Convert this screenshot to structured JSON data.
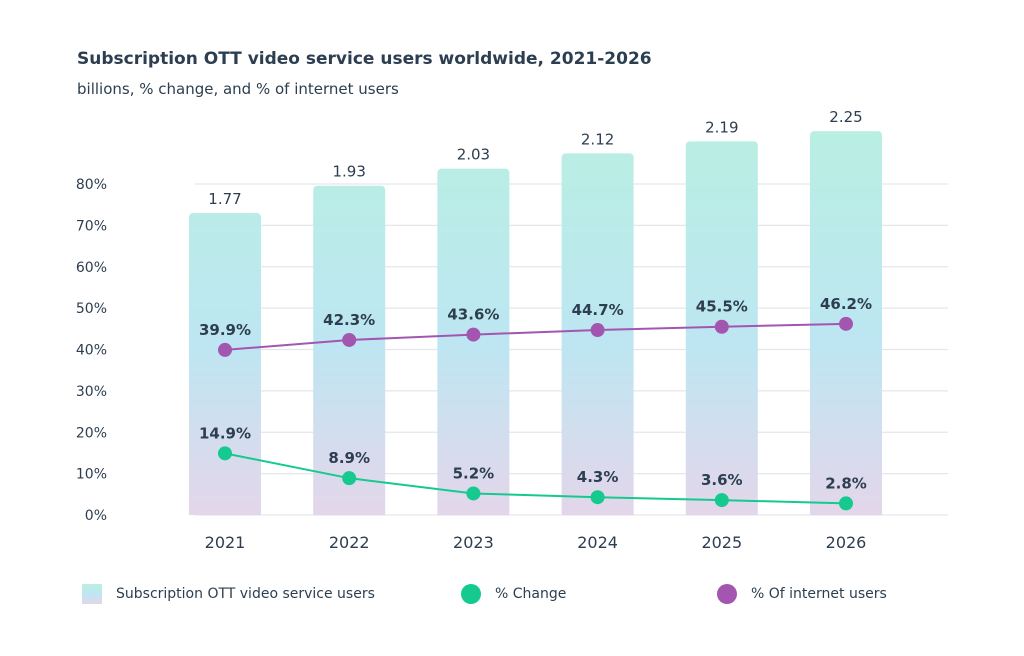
{
  "chart_data": {
    "type": "bar+line",
    "title": "Subscription OTT video service users worldwide, 2021-2026",
    "subtitle": "billions, % change, and % of internet users",
    "categories": [
      "2021",
      "2022",
      "2023",
      "2024",
      "2025",
      "2026"
    ],
    "y_axis": {
      "ticks": [
        "0%",
        "10%",
        "20%",
        "30%",
        "40%",
        "50%",
        "60%",
        "70%",
        "80%"
      ],
      "ylim": [
        0,
        80
      ],
      "grid": true
    },
    "series": [
      {
        "name": "Subscription OTT video service users",
        "type": "bar",
        "unit": "billions",
        "values": [
          1.77,
          1.93,
          2.03,
          2.12,
          2.19,
          2.25
        ],
        "labels": [
          "1.77",
          "1.93",
          "2.03",
          "2.12",
          "2.19",
          "2.25"
        ],
        "colors": [
          "#b9efe2",
          "#bde6f2",
          "#e4d6ea"
        ]
      },
      {
        "name": "% Change",
        "type": "line",
        "values": [
          14.9,
          8.9,
          5.2,
          4.3,
          3.6,
          2.8
        ],
        "labels": [
          "14.9%",
          "8.9%",
          "5.2%",
          "4.3%",
          "3.6%",
          "2.8%"
        ],
        "color": "#15c98f"
      },
      {
        "name": "% Of internet users",
        "type": "line",
        "values": [
          39.9,
          42.3,
          43.6,
          44.7,
          45.5,
          46.2
        ],
        "labels": [
          "39.9%",
          "42.3%",
          "43.6%",
          "44.7%",
          "45.5%",
          "46.2%"
        ],
        "color": "#a356b0"
      }
    ],
    "legend_position": "bottom"
  }
}
